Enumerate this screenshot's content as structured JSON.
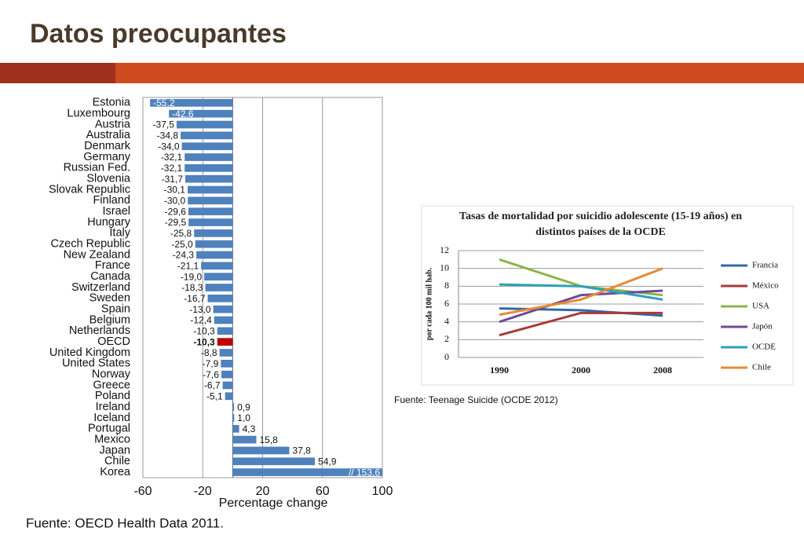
{
  "slide": {
    "title": "Datos preocupantes"
  },
  "chart_data": [
    {
      "type": "hbar",
      "categories": [
        "Estonia",
        "Luxembourg",
        "Austria",
        "Australia",
        "Denmark",
        "Germany",
        "Russian Fed.",
        "Slovenia",
        "Slovak Republic",
        "Finland",
        "Israel",
        "Hungary",
        "Italy",
        "Czech Republic",
        "New Zealand",
        "France",
        "Canada",
        "Switzerland",
        "Sweden",
        "Spain",
        "Belgium",
        "Netherlands",
        "OECD",
        "United Kingdom",
        "United States",
        "Norway",
        "Greece",
        "Poland",
        "Ireland",
        "Iceland",
        "Portugal",
        "Mexico",
        "Japan",
        "Chile",
        "Korea"
      ],
      "values": [
        -55.2,
        -42.6,
        -37.5,
        -34.8,
        -34.0,
        -32.1,
        -32.1,
        -31.7,
        -30.1,
        -30.0,
        -29.6,
        -29.5,
        -25.8,
        -25.0,
        -24.3,
        -21.1,
        -19.0,
        -18.3,
        -16.7,
        -13.0,
        -12.4,
        -10.3,
        -10.3,
        -8.8,
        -7.9,
        -7.6,
        -6.7,
        -5.1,
        0.9,
        1.0,
        4.3,
        15.8,
        37.8,
        54.9,
        153.6
      ],
      "value_labels": [
        "-55,2",
        "-42,6",
        "-37,5",
        "-34,8",
        "-34,0",
        "-32,1",
        "-32,1",
        "-31,7",
        "-30,1",
        "-30,0",
        "-29,6",
        "-29,5",
        "-25,8",
        "-25,0",
        "-24,3",
        "-21,1",
        "-19,0",
        "-18,3",
        "-16,7",
        "-13,0",
        "-12,4",
        "-10,3",
        "-10,3",
        "-8,8",
        "-7,9",
        "-7,6",
        "-6,7",
        "-5,1",
        "0,9",
        "1,0",
        "4,3",
        "15,8",
        "37,8",
        "54,9",
        "// 153,6"
      ],
      "colors": [
        "#4f81bd",
        "#4f81bd",
        "#4f81bd",
        "#4f81bd",
        "#4f81bd",
        "#4f81bd",
        "#4f81bd",
        "#4f81bd",
        "#4f81bd",
        "#4f81bd",
        "#4f81bd",
        "#4f81bd",
        "#4f81bd",
        "#4f81bd",
        "#4f81bd",
        "#4f81bd",
        "#4f81bd",
        "#4f81bd",
        "#4f81bd",
        "#4f81bd",
        "#4f81bd",
        "#4f81bd",
        "#c00000",
        "#4f81bd",
        "#4f81bd",
        "#4f81bd",
        "#4f81bd",
        "#4f81bd",
        "#4f81bd",
        "#4f81bd",
        "#4f81bd",
        "#4f81bd",
        "#4f81bd",
        "#4f81bd",
        "#4f81bd"
      ],
      "xlabel": "Percentage change",
      "xlim": [
        -60,
        100
      ],
      "xticks": [
        -60,
        -20,
        20,
        60,
        100
      ],
      "grid": true,
      "source": "Fuente: OECD Health Data 2011."
    },
    {
      "type": "line",
      "title": "Tasas de mortalidad por suicidio adolescente (15-19 años) en distintos países de la OCDE",
      "categories": [
        "1990",
        "2000",
        "2008"
      ],
      "series": [
        {
          "name": "Francia",
          "color": "#2e6aa8",
          "values": [
            5.5,
            5.3,
            4.7
          ]
        },
        {
          "name": "México",
          "color": "#a93a3a",
          "values": [
            2.5,
            5.0,
            5.0
          ]
        },
        {
          "name": "USA",
          "color": "#8db44a",
          "values": [
            11.0,
            8.0,
            7.0
          ]
        },
        {
          "name": "Japón",
          "color": "#6b4c9a",
          "values": [
            4.0,
            7.0,
            7.5
          ]
        },
        {
          "name": "OCDE",
          "color": "#2ea0b8",
          "values": [
            8.2,
            8.0,
            6.5
          ]
        },
        {
          "name": "Chile",
          "color": "#e98a33",
          "values": [
            4.8,
            6.5,
            10.0
          ]
        }
      ],
      "ylabel": "por cada 100 mil hab.",
      "ylim": [
        0,
        12
      ],
      "yticks": [
        0,
        2,
        4,
        6,
        8,
        10,
        12
      ],
      "grid": true,
      "legend": "right",
      "source": "Fuente: Teenage Suicide (OCDE 2012)"
    }
  ]
}
